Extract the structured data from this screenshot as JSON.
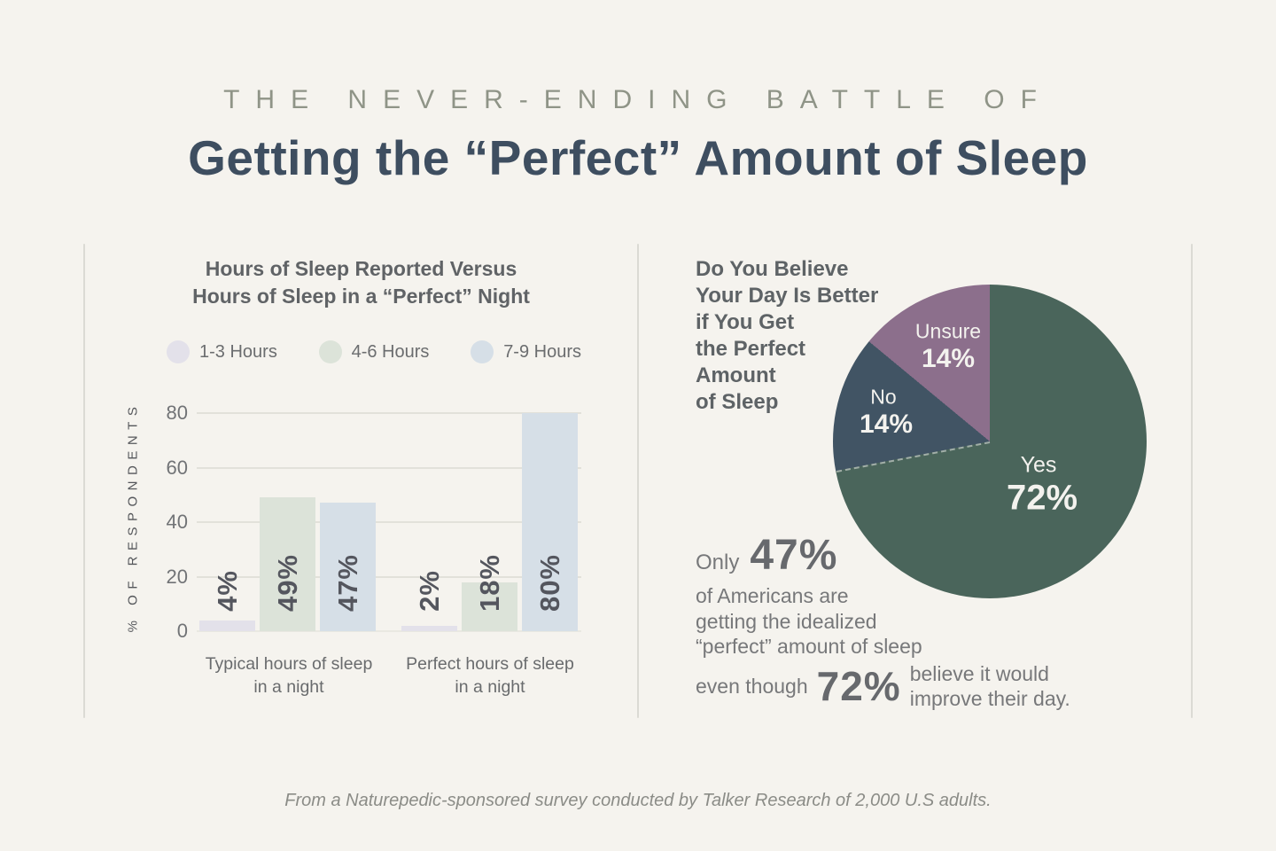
{
  "header": {
    "eyebrow": "THE NEVER-ENDING BATTLE OF",
    "title": "Getting the “Perfect” Amount of Sleep"
  },
  "chart_data": [
    {
      "type": "bar",
      "title": "Hours of Sleep Reported Versus Hours of Sleep in a “Perfect” Night",
      "title_lines": [
        "Hours of Sleep Reported Versus",
        "Hours of Sleep in a “Perfect” Night"
      ],
      "categories": [
        "Typical hours of sleep\nin a night",
        "Perfect hours of sleep\nin a night"
      ],
      "series": [
        {
          "name": "1-3 Hours",
          "color": "#e3e1ea",
          "values": [
            4,
            2
          ]
        },
        {
          "name": "4-6 Hours",
          "color": "#dce3d9",
          "values": [
            49,
            18
          ]
        },
        {
          "name": "7-9 Hours",
          "color": "#d6dfe7",
          "values": [
            47,
            80
          ]
        }
      ],
      "ylabel": "% OF RESPONDENTS",
      "yticks": [
        0,
        20,
        40,
        60,
        80
      ],
      "ylim": [
        0,
        80
      ],
      "value_suffix": "%",
      "grid": true,
      "legend_position": "top"
    },
    {
      "type": "pie",
      "title": "Do You Believe Your Day Is Better if You Get the Perfect Amount of Sleep",
      "title_lines": [
        "Do You Believe",
        "Your Day Is Better",
        "if You Get",
        "the Perfect",
        "Amount",
        "of Sleep"
      ],
      "slices": [
        {
          "label": "Yes",
          "value": 72,
          "display": "72%",
          "color": "#4a655b"
        },
        {
          "label": "No",
          "value": 14,
          "display": "14%",
          "color": "#415464"
        },
        {
          "label": "Unsure",
          "value": 14,
          "display": "14%",
          "color": "#8c6f8c"
        }
      ],
      "start_angle_deg": 0,
      "direction": "clockwise",
      "legend_position": "none"
    }
  ],
  "callout": {
    "prefix": "Only",
    "stat1": "47%",
    "lines": [
      "of Americans are",
      "getting the idealized",
      "“perfect” amount of sleep"
    ],
    "even_though": "even though",
    "stat2": "72%",
    "suffix_lines": [
      "believe it would",
      "improve their day."
    ]
  },
  "footer": {
    "text": "From a Naturepedic-sponsored survey conducted by Talker Research of 2,000 U.S adults."
  },
  "colors": {
    "background": "#f5f3ee",
    "eyebrow": "#8f9487",
    "title": "#3e4e60",
    "divider": "#dbdad4",
    "grid": "#e2e1da",
    "bar_value_text": "#54565e",
    "body_text": "#77787a",
    "stat_text": "#67696d",
    "pie_label_text": "#f3f2ee",
    "footer_text": "#8b8c87"
  }
}
